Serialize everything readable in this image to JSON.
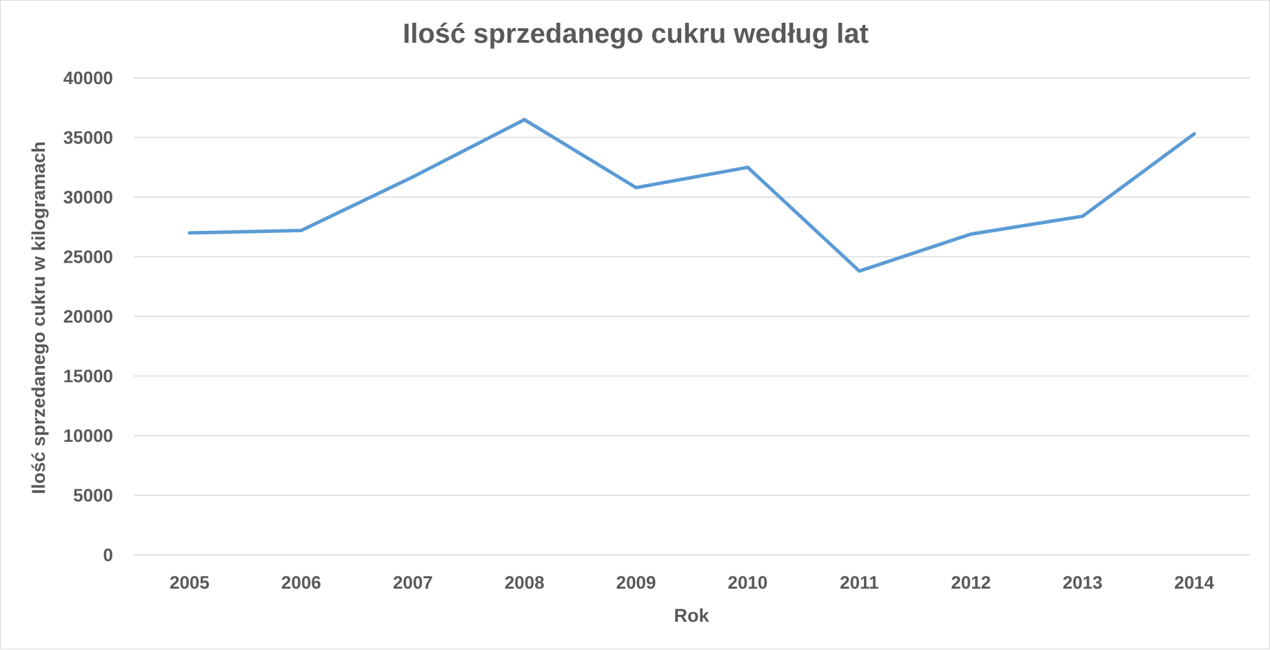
{
  "colors": {
    "series": "#5b9bd5",
    "gridline": "#d9d9d9",
    "text": "#595959"
  },
  "chart_data": {
    "type": "line",
    "title": "Ilość sprzedanego cukru według lat",
    "xlabel": "Rok",
    "ylabel": "Ilość sprzedanego cukru w kilogramach",
    "categories": [
      "2005",
      "2006",
      "2007",
      "2008",
      "2009",
      "2010",
      "2011",
      "2012",
      "2013",
      "2014"
    ],
    "series": [
      {
        "values": [
          27000,
          27200,
          31700,
          36500,
          30800,
          32500,
          23800,
          26900,
          28400,
          35300
        ]
      }
    ],
    "ylim": [
      0,
      40000
    ],
    "yticks": [
      "0",
      "5000",
      "10000",
      "15000",
      "20000",
      "25000",
      "30000",
      "35000",
      "40000"
    ],
    "grid": true,
    "legend": "none"
  }
}
